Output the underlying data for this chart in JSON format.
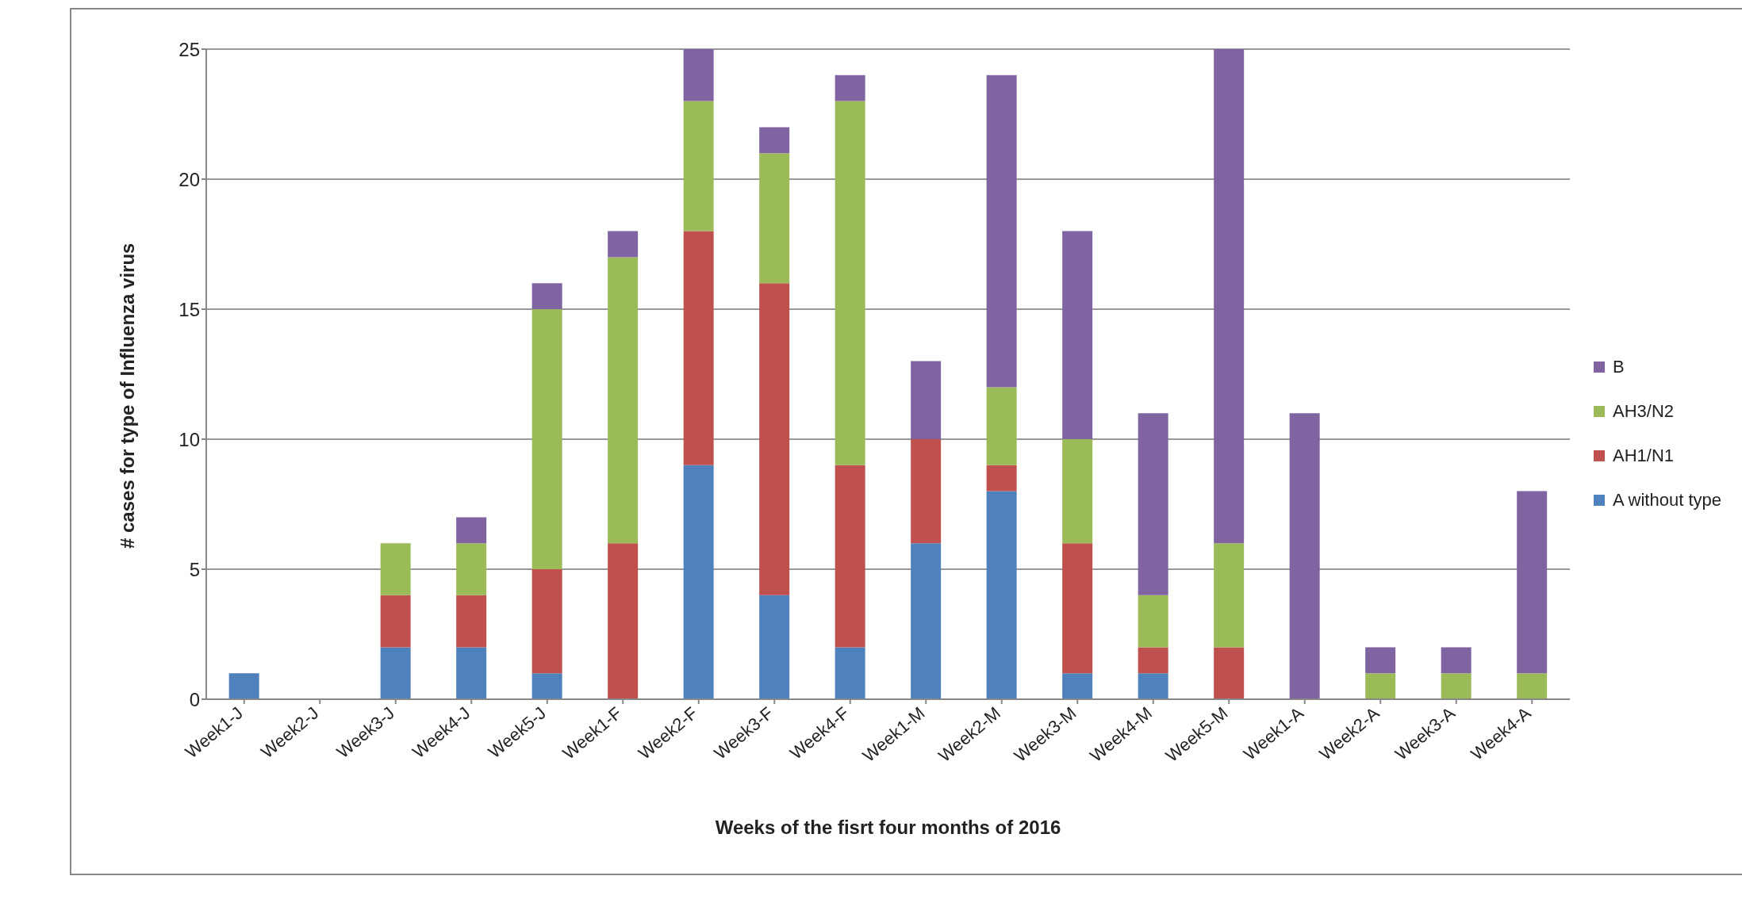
{
  "chart_data": {
    "type": "bar",
    "stacked": true,
    "xlabel": "Weeks of the fisrt four months of 2016",
    "ylabel": "# cases for type of Influenza virus",
    "categories": [
      "Week1-J",
      "Week2-J",
      "Week3-J",
      "Week4-J",
      "Week5-J",
      "Week1-F",
      "Week2-F",
      "Week3-F",
      "Week4-F",
      "Week1-M",
      "Week2-M",
      "Week3-M",
      "Week4-M",
      "Week5-M",
      "Week1-A",
      "Week2-A",
      "Week3-A",
      "Week4-A"
    ],
    "series": [
      {
        "name": "A without type",
        "color": "#4f81bd",
        "values": [
          1,
          0,
          2,
          2,
          1,
          0,
          9,
          4,
          2,
          6,
          8,
          1,
          1,
          0,
          0,
          0,
          0,
          0
        ]
      },
      {
        "name": "AH1/N1",
        "color": "#c0504d",
        "values": [
          0,
          0,
          2,
          2,
          4,
          6,
          9,
          12,
          7,
          4,
          1,
          5,
          1,
          2,
          0,
          0,
          0,
          0
        ]
      },
      {
        "name": "AH3/N2",
        "color": "#9bbb59",
        "values": [
          0,
          0,
          2,
          2,
          10,
          11,
          5,
          5,
          14,
          0,
          3,
          4,
          2,
          4,
          0,
          1,
          1,
          1
        ]
      },
      {
        "name": "B",
        "color": "#8064a2",
        "values": [
          0,
          0,
          0,
          1,
          1,
          1,
          2,
          1,
          1,
          3,
          12,
          8,
          7,
          19,
          11,
          1,
          1,
          7
        ]
      }
    ],
    "ylim": [
      0,
      25
    ],
    "yticks": [
      0,
      5,
      10,
      15,
      20,
      25
    ],
    "grid": "y",
    "legend": "right"
  }
}
